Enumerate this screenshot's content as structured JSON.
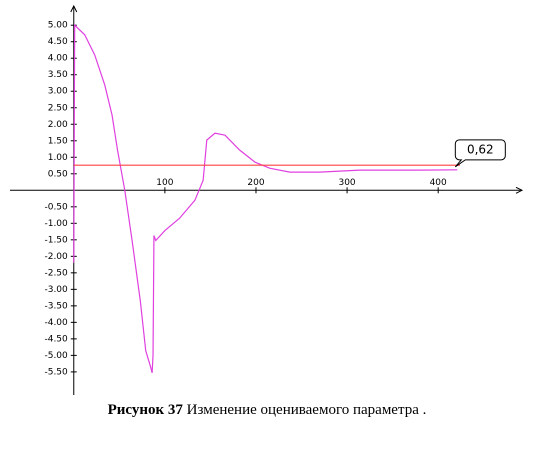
{
  "chart_data": {
    "type": "line",
    "caption_label": "Рисунок 37",
    "caption_text": "Изменение оцениваемого параметра .",
    "xlim": [
      -70,
      492
    ],
    "ylim": [
      -6.2,
      5.4
    ],
    "xticks": [
      100,
      200,
      300,
      400
    ],
    "yticks": [
      {
        "value": 5.0,
        "label": "5.00"
      },
      {
        "value": 4.5,
        "label": "4.50"
      },
      {
        "value": 4.0,
        "label": "4.00"
      },
      {
        "value": 3.5,
        "label": "3.50"
      },
      {
        "value": 3.0,
        "label": "3.00"
      },
      {
        "value": 2.5,
        "label": "2.50"
      },
      {
        "value": 2.0,
        "label": "2.00"
      },
      {
        "value": 1.5,
        "label": "1.50"
      },
      {
        "value": 1.0,
        "label": "1.00"
      },
      {
        "value": 0.5,
        "label": "0.50"
      },
      {
        "value": -0.5,
        "label": "-0.50"
      },
      {
        "value": -1.0,
        "label": "-1.00"
      },
      {
        "value": -1.5,
        "label": "-1.50"
      },
      {
        "value": -2.0,
        "label": "-2.00"
      },
      {
        "value": -2.5,
        "label": "-2.50"
      },
      {
        "value": -3.0,
        "label": "-3.00"
      },
      {
        "value": -3.5,
        "label": "-3.50"
      },
      {
        "value": -4.0,
        "label": "-4.00"
      },
      {
        "value": -4.5,
        "label": "-4.50"
      },
      {
        "value": -5.0,
        "label": "-5.00"
      },
      {
        "value": -5.5,
        "label": "-5.50"
      }
    ],
    "series": [
      {
        "color": "#e040e0",
        "x": [
          0,
          1,
          12,
          23,
          34,
          42,
          48,
          56,
          64,
          73,
          79,
          84,
          86,
          87,
          88,
          90,
          100,
          116,
          133,
          142,
          146,
          155,
          166,
          182,
          199,
          215,
          237,
          270,
          314,
          380,
          421
        ],
        "values": [
          -2.2,
          5.0,
          4.71,
          4.1,
          3.19,
          2.28,
          1.22,
          0,
          -1.52,
          -3.34,
          -4.86,
          -5.32,
          -5.53,
          -5.0,
          -1.37,
          -1.52,
          -1.22,
          -0.85,
          -0.3,
          0.3,
          1.52,
          1.73,
          1.67,
          1.22,
          0.85,
          0.67,
          0.55,
          0.55,
          0.61,
          0.61,
          0.62
        ]
      },
      {
        "color": "#ff4040",
        "x": [
          0,
          424
        ],
        "values": [
          0.76,
          0.76
        ]
      }
    ],
    "annotation": {
      "text": "0,62",
      "x": 421,
      "y": 0.62
    }
  }
}
